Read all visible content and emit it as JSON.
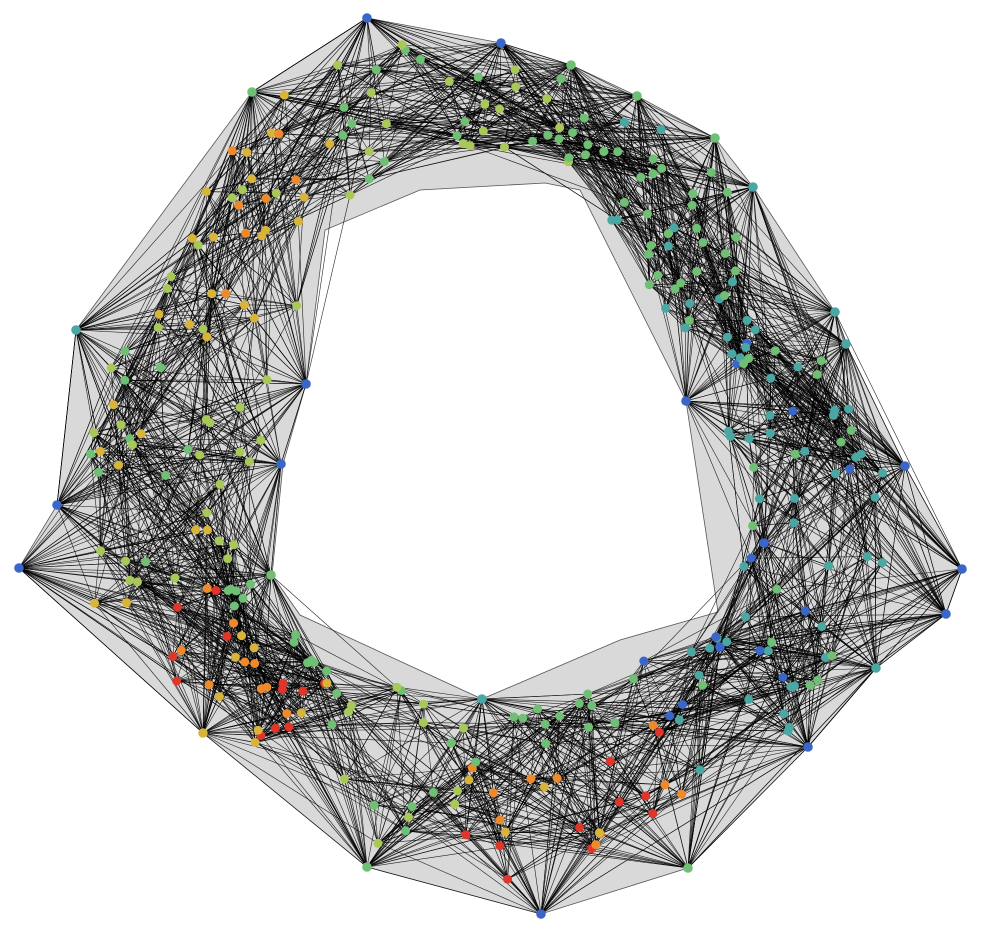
{
  "diagram": {
    "type": "network-graph",
    "layout": "ring",
    "background": "#ffffff",
    "hull_fill": "#d9d9d9",
    "edge_color": "#000000",
    "node_palette": {
      "blue": "#3b66c9",
      "teal": "#4aa7a4",
      "green": "#6fbf74",
      "lime": "#a9c85a",
      "yellow": "#d8b43a",
      "orange": "#ee8a2c",
      "red": "#e0352a"
    },
    "labels": []
  }
}
